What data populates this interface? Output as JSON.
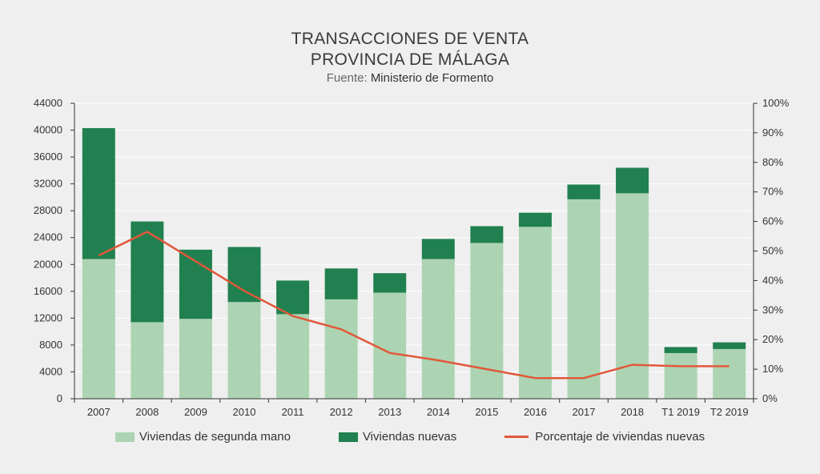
{
  "header": {
    "title_line1": "TRANSACCIONES DE VENTA",
    "title_line2": "PROVINCIA DE MÁLAGA",
    "source_label": "Fuente:",
    "source_value": "Ministerio de Formento"
  },
  "legend": {
    "item1": "Viviendas de segunda mano",
    "item2": "Viviendas nuevas",
    "item3": "Porcentaje de viviendas nuevas"
  },
  "chart_data": {
    "type": "bar",
    "stacked": true,
    "title": "TRANSACCIONES DE VENTA PROVINCIA DE MÁLAGA",
    "subtitle": "Fuente: Ministerio de Formento",
    "categories": [
      "2007",
      "2008",
      "2009",
      "2010",
      "2011",
      "2012",
      "2013",
      "2014",
      "2015",
      "2016",
      "2017",
      "2018",
      "T1 2019",
      "T2 2019"
    ],
    "series": [
      {
        "name": "Viviendas de segunda mano",
        "type": "bar",
        "color": "#acd4b2",
        "values": [
          20800,
          11400,
          11900,
          14400,
          12600,
          14800,
          15800,
          20800,
          23200,
          25600,
          29700,
          30600,
          6800,
          7400
        ]
      },
      {
        "name": "Viviendas nuevas",
        "type": "bar",
        "color": "#218050",
        "values": [
          19500,
          15000,
          10300,
          8200,
          5000,
          4600,
          2900,
          3000,
          2500,
          2100,
          2200,
          3800,
          900,
          1000
        ]
      },
      {
        "name": "Porcentaje de viviendas nuevas",
        "type": "line",
        "axis": "right",
        "color": "#e0583a",
        "values": [
          48.5,
          56.5,
          46.5,
          36.5,
          28,
          23.5,
          15.5,
          13,
          10,
          7,
          7,
          11.5,
          11,
          11
        ]
      }
    ],
    "y_left": {
      "min": 0,
      "max": 44000,
      "ticks": [
        0,
        4000,
        8000,
        12000,
        16000,
        20000,
        24000,
        28000,
        32000,
        36000,
        40000,
        44000
      ]
    },
    "y_right": {
      "min": 0,
      "max": 100,
      "ticks": [
        "0%",
        "10%",
        "20%",
        "30%",
        "40%",
        "50%",
        "60%",
        "70%",
        "80%",
        "90%",
        "100%"
      ]
    },
    "grid": true,
    "legend_position": "bottom"
  },
  "colors": {
    "background": "#efefef",
    "grid": "#ffffff",
    "axis": "#333333"
  }
}
